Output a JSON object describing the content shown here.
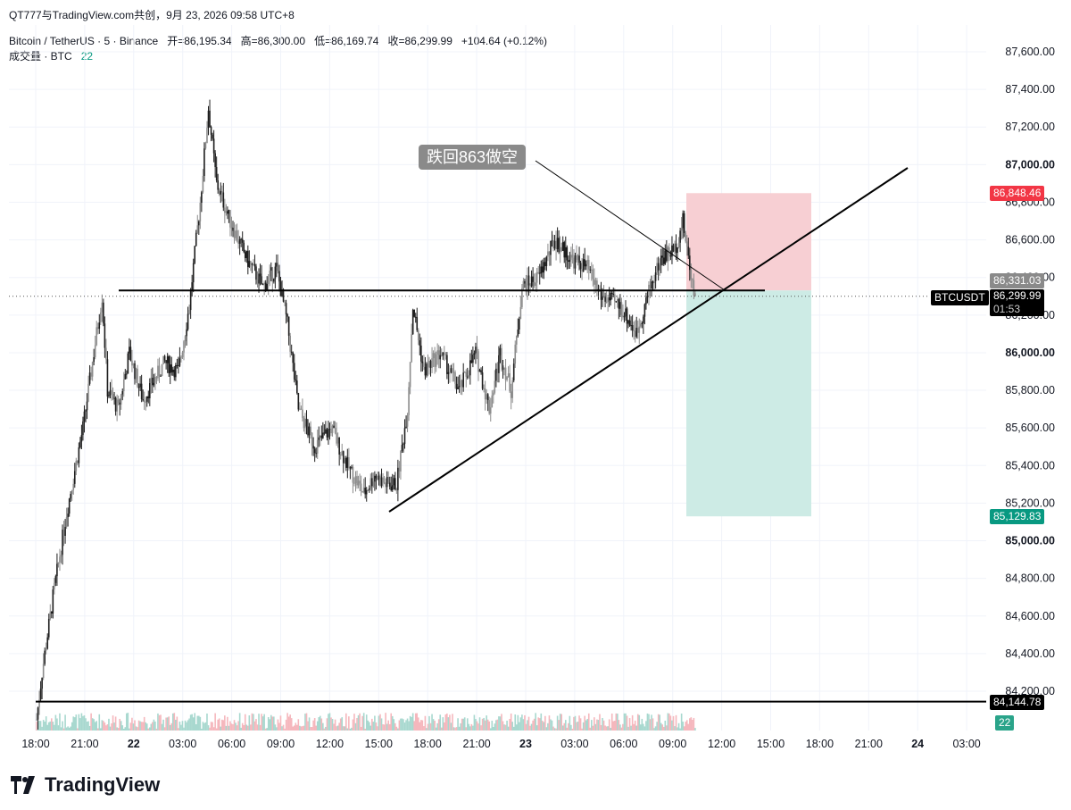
{
  "header": {
    "title": "QT777与TradingView.com共创，9月 23, 2026 09:58 UTC+8"
  },
  "symbol_line": {
    "symbol": "Bitcoin / TetherUS · 5 · Binance",
    "open_label": "开=86,195.34",
    "high_label": "高=86,300.00",
    "low_label": "低=86,169.74",
    "close_label": "收=86,299.99",
    "change": "+104.64 (+0.12%)"
  },
  "volume_line": {
    "label": "成交量 · BTC",
    "value": "22"
  },
  "annotation": {
    "text": "跌回863做空"
  },
  "price_tags": {
    "stop": "86,848.46",
    "entry": "86,331.03",
    "symbol": "BTCUSDT",
    "last": "86,299.99",
    "countdown": "01:53",
    "target": "85,129.83",
    "support": "84,144.78",
    "volume": "22"
  },
  "brand": {
    "logo_text": "TradingView"
  },
  "colors": {
    "bull": "#089981",
    "bear": "#f23645",
    "stop_zone": "#f7cfd3",
    "target_zone": "#cdebe5",
    "candle_dark": "#1e1e1e",
    "candle_light": "#8c8c8c"
  },
  "chart_data": {
    "type": "candlestick",
    "symbol": "BTCUSDT",
    "interval": "5",
    "ylim": [
      84000,
      87700
    ],
    "y_ticks": [
      84200,
      84400,
      84600,
      84800,
      85000,
      85200,
      85400,
      85600,
      85800,
      86000,
      86200,
      86400,
      86600,
      86800,
      87000,
      87200,
      87400,
      87600
    ],
    "y_tick_labels": [
      "84,200.00",
      "84,400.00",
      "84,600.00",
      "84,800.00",
      "85,000.00",
      "85,200.00",
      "85,400.00",
      "85,600.00",
      "85,800.00",
      "86,000.00",
      "86,200.00",
      "86,400.00",
      "86,600.00",
      "86,800.00",
      "87,000.00",
      "87,200.00",
      "87,400.00",
      "87,600.00"
    ],
    "bold_ticks": [
      "85,000.00",
      "86,000.00",
      "87,000.00"
    ],
    "x_ticks": [
      "18:00",
      "21:00",
      "22",
      "03:00",
      "06:00",
      "09:00",
      "12:00",
      "15:00",
      "18:00",
      "21:00",
      "23",
      "03:00",
      "06:00",
      "09:00",
      "12:00",
      "15:00",
      "18:00",
      "21:00",
      "24",
      "03:00"
    ],
    "bold_x_ticks": [
      "22",
      "23",
      "24"
    ],
    "price_path": [
      [
        "17:40",
        84050
      ],
      [
        "18:00",
        84300
      ],
      [
        "18:40",
        84700
      ],
      [
        "19:30",
        85150
      ],
      [
        "20:30",
        85600
      ],
      [
        "21:40",
        86300
      ],
      [
        "22:00",
        85800
      ],
      [
        "22:40",
        85700
      ],
      [
        "23:20",
        86000
      ],
      [
        "00:10",
        85750
      ],
      [
        "01:30",
        85950
      ],
      [
        "02:20",
        85900
      ],
      [
        "03:00",
        86250
      ],
      [
        "03:40",
        86800
      ],
      [
        "04:10",
        87300
      ],
      [
        "04:40",
        86900
      ],
      [
        "05:30",
        86700
      ],
      [
        "06:30",
        86500
      ],
      [
        "07:30",
        86350
      ],
      [
        "08:20",
        86450
      ],
      [
        "09:00",
        86150
      ],
      [
        "09:40",
        85700
      ],
      [
        "10:40",
        85500
      ],
      [
        "11:40",
        85600
      ],
      [
        "12:40",
        85400
      ],
      [
        "13:40",
        85250
      ],
      [
        "14:20",
        85350
      ],
      [
        "15:00",
        85300
      ],
      [
        "15:40",
        85300
      ],
      [
        "16:20",
        85700
      ],
      [
        "16:40",
        86250
      ],
      [
        "17:20",
        85900
      ],
      [
        "18:20",
        86000
      ],
      [
        "19:30",
        85800
      ],
      [
        "20:30",
        86000
      ],
      [
        "21:20",
        85700
      ],
      [
        "22:00",
        86000
      ],
      [
        "22:40",
        85800
      ],
      [
        "23:20",
        86350
      ],
      [
        "00:20",
        86400
      ],
      [
        "01:20",
        86600
      ],
      [
        "02:20",
        86500
      ],
      [
        "03:20",
        86450
      ],
      [
        "04:10",
        86300
      ],
      [
        "05:20",
        86250
      ],
      [
        "06:20",
        86100
      ],
      [
        "07:10",
        86350
      ],
      [
        "07:50",
        86500
      ],
      [
        "08:40",
        86550
      ],
      [
        "09:10",
        86700
      ],
      [
        "09:30",
        86500
      ],
      [
        "09:55",
        86300
      ]
    ],
    "low_anchor": {
      "time": "18:00",
      "price": 84144.78
    },
    "peak": {
      "time": "04:10",
      "price": 87400
    },
    "drawings": {
      "support_line": 84144.78,
      "resistance_line": 86331.03,
      "trendline": {
        "from": [
          "15:40",
          85150
        ],
        "to": [
          "03:00",
          86980
        ]
      },
      "callout_text_line": true
    },
    "position": {
      "side": "short",
      "entry": 86331.03,
      "stop": 86848.46,
      "target": 85129.83
    },
    "volume_last": 22
  }
}
